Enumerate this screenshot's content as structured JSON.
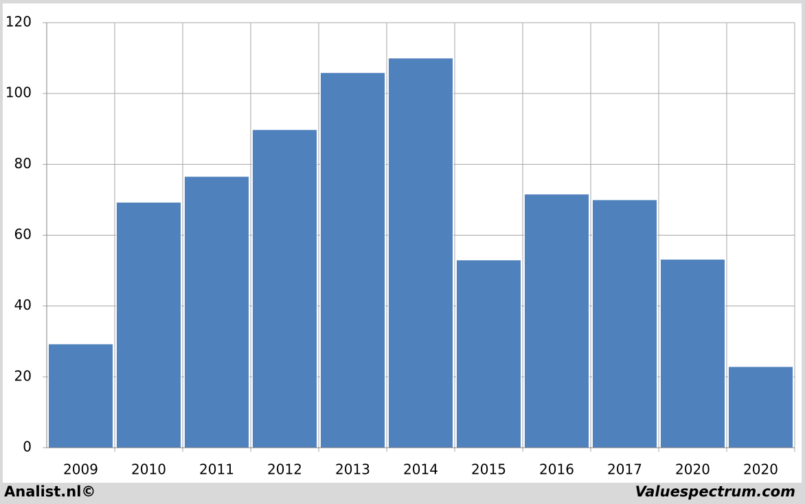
{
  "chart_data": {
    "type": "bar",
    "categories": [
      "2009",
      "2010",
      "2011",
      "2012",
      "2013",
      "2014",
      "2015",
      "2016",
      "2017",
      "2020",
      "2020"
    ],
    "values": [
      29.3,
      69.3,
      76.6,
      89.8,
      105.9,
      110.0,
      53.0,
      71.6,
      70.0,
      53.2,
      22.9
    ],
    "color": "#4f81bd",
    "ylim": [
      0,
      120
    ],
    "yticks": [
      0,
      20,
      40,
      60,
      80,
      100,
      120
    ],
    "grid": true
  },
  "footer": {
    "left": "Analist.nl©",
    "right": "Valuespectrum.com"
  }
}
